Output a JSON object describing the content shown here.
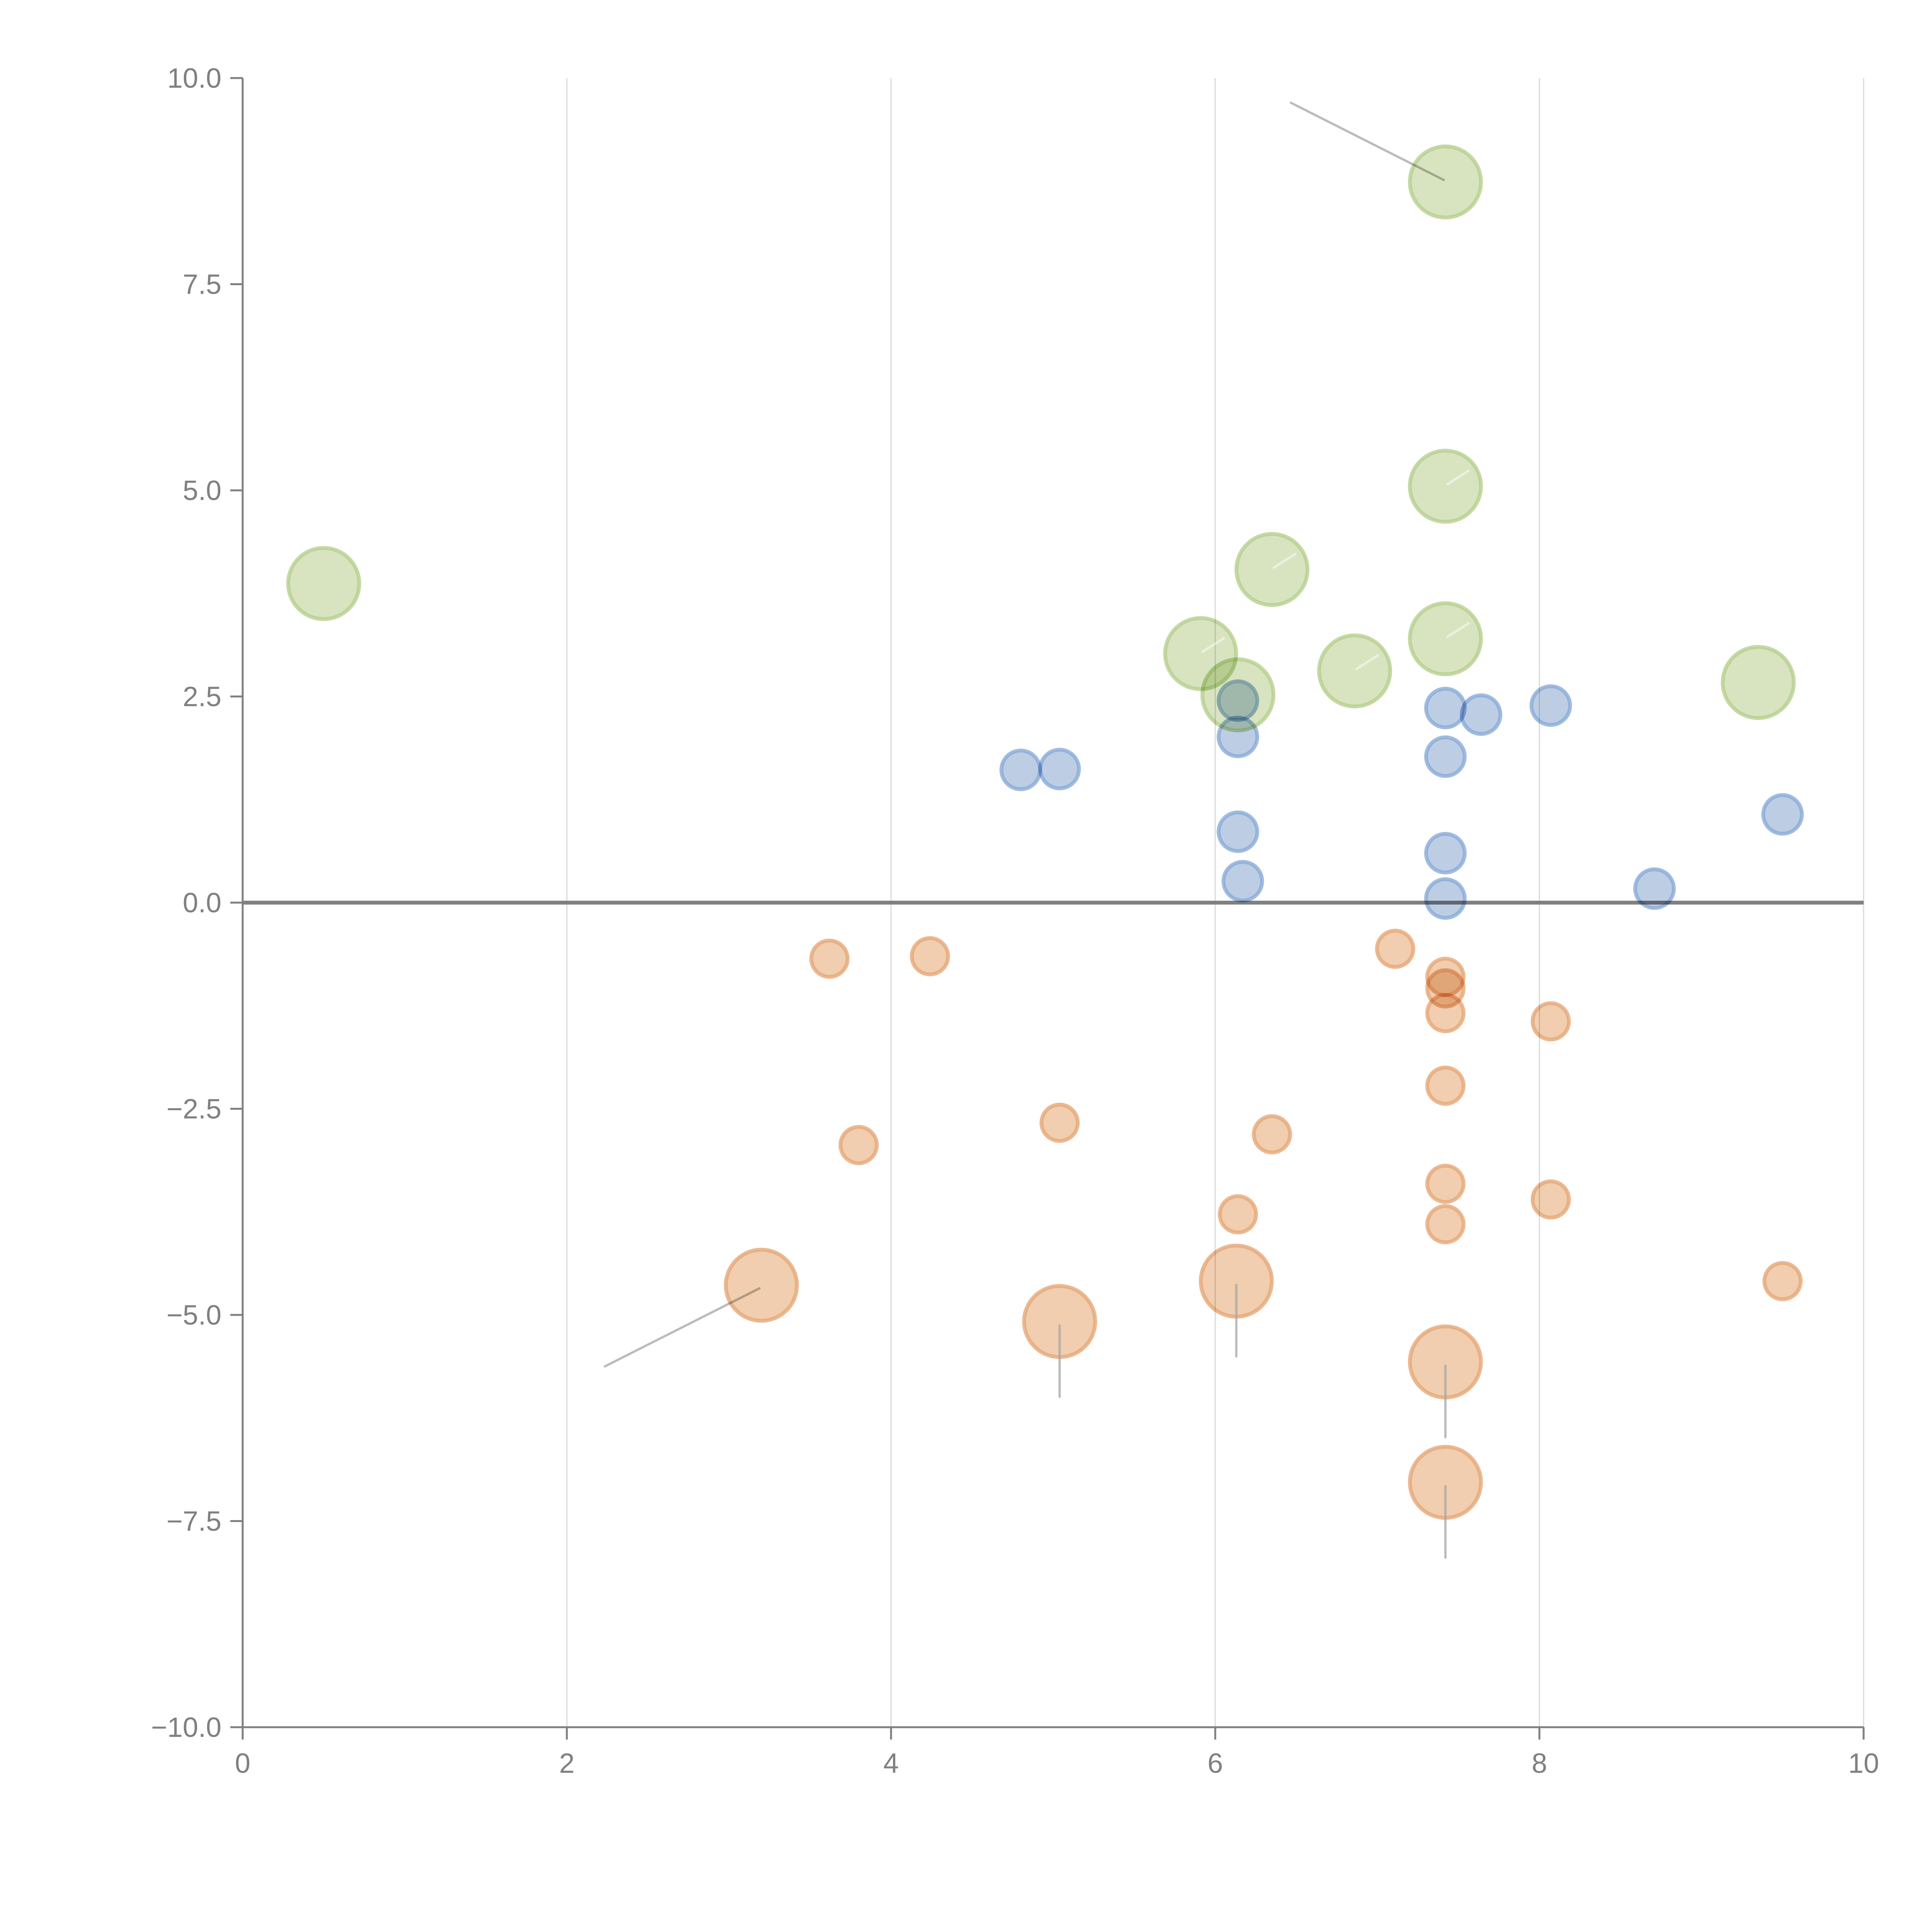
{
  "chart_data": {
    "type": "scatter",
    "title": "",
    "xlabel": "",
    "ylabel": "",
    "xlim": [
      0,
      10
    ],
    "ylim": [
      -10,
      10
    ],
    "x_ticks": [
      "0",
      "2",
      "4",
      "6",
      "8",
      "10"
    ],
    "y_ticks": [
      "10.0",
      "7.5",
      "5.0",
      "2.5",
      "0.0",
      "−2.5",
      "−5.0",
      "−7.5",
      "−10.0"
    ],
    "x_tick_values": [
      0,
      2,
      4,
      6,
      8,
      10
    ],
    "y_tick_values": [
      10,
      7.5,
      5,
      2.5,
      0,
      -2.5,
      -5,
      -7.5,
      -10
    ],
    "grid": "vertical",
    "zero_line": true,
    "legend": "none",
    "series": [
      {
        "name": "green",
        "color": "#a9c97a",
        "size": "large",
        "points": [
          {
            "x": 0.5,
            "y": 3.87
          },
          {
            "x": 7.42,
            "y": 8.74,
            "leader": "outer"
          },
          {
            "x": 7.42,
            "y": 5.05,
            "leader": "inner"
          },
          {
            "x": 6.35,
            "y": 4.04,
            "leader": "inner"
          },
          {
            "x": 5.91,
            "y": 3.02,
            "leader": "inner"
          },
          {
            "x": 7.42,
            "y": 3.2,
            "leader": "inner"
          },
          {
            "x": 6.14,
            "y": 2.52
          },
          {
            "x": 6.86,
            "y": 2.81,
            "leader": "inner"
          },
          {
            "x": 9.35,
            "y": 2.67
          }
        ]
      },
      {
        "name": "blue",
        "color": "#7ba0d0",
        "size": "small",
        "points": [
          {
            "x": 4.8,
            "y": 1.61
          },
          {
            "x": 5.04,
            "y": 1.62
          },
          {
            "x": 6.14,
            "y": 2.45
          },
          {
            "x": 6.14,
            "y": 2.01
          },
          {
            "x": 6.14,
            "y": 0.86
          },
          {
            "x": 6.17,
            "y": 0.26
          },
          {
            "x": 7.42,
            "y": 2.36
          },
          {
            "x": 7.42,
            "y": 1.77
          },
          {
            "x": 7.64,
            "y": 2.28
          },
          {
            "x": 8.07,
            "y": 2.39
          },
          {
            "x": 7.42,
            "y": 0.6
          },
          {
            "x": 7.42,
            "y": 0.05
          },
          {
            "x": 8.71,
            "y": 0.17
          },
          {
            "x": 9.5,
            "y": 1.07
          }
        ]
      },
      {
        "name": "orange",
        "color": "#e8a870",
        "size": "mixed",
        "points": [
          {
            "x": 3.62,
            "y": -0.68,
            "r": "small"
          },
          {
            "x": 4.24,
            "y": -0.65,
            "r": "small"
          },
          {
            "x": 7.11,
            "y": -0.56,
            "r": "small"
          },
          {
            "x": 7.42,
            "y": -0.9,
            "r": "small"
          },
          {
            "x": 7.42,
            "y": -1.04,
            "r": "small"
          },
          {
            "x": 7.42,
            "y": -1.34,
            "r": "small"
          },
          {
            "x": 8.07,
            "y": -1.44,
            "r": "small"
          },
          {
            "x": 7.42,
            "y": -2.22,
            "r": "small"
          },
          {
            "x": 3.8,
            "y": -2.94,
            "r": "small"
          },
          {
            "x": 5.04,
            "y": -2.67,
            "r": "small"
          },
          {
            "x": 6.35,
            "y": -2.81,
            "r": "small"
          },
          {
            "x": 7.42,
            "y": -3.41,
            "r": "small"
          },
          {
            "x": 8.07,
            "y": -3.6,
            "r": "small"
          },
          {
            "x": 7.42,
            "y": -3.9,
            "r": "small"
          },
          {
            "x": 6.14,
            "y": -3.78,
            "r": "small"
          },
          {
            "x": 9.5,
            "y": -4.59,
            "r": "small"
          },
          {
            "x": 3.2,
            "y": -4.64,
            "r": "large",
            "leader": "outer-left"
          },
          {
            "x": 5.04,
            "y": -5.08,
            "r": "large",
            "leader": "down"
          },
          {
            "x": 6.13,
            "y": -4.59,
            "r": "large",
            "leader": "down"
          },
          {
            "x": 7.42,
            "y": -5.57,
            "r": "large",
            "leader": "down"
          },
          {
            "x": 7.42,
            "y": -7.03,
            "r": "large",
            "leader": "down"
          }
        ]
      }
    ]
  }
}
